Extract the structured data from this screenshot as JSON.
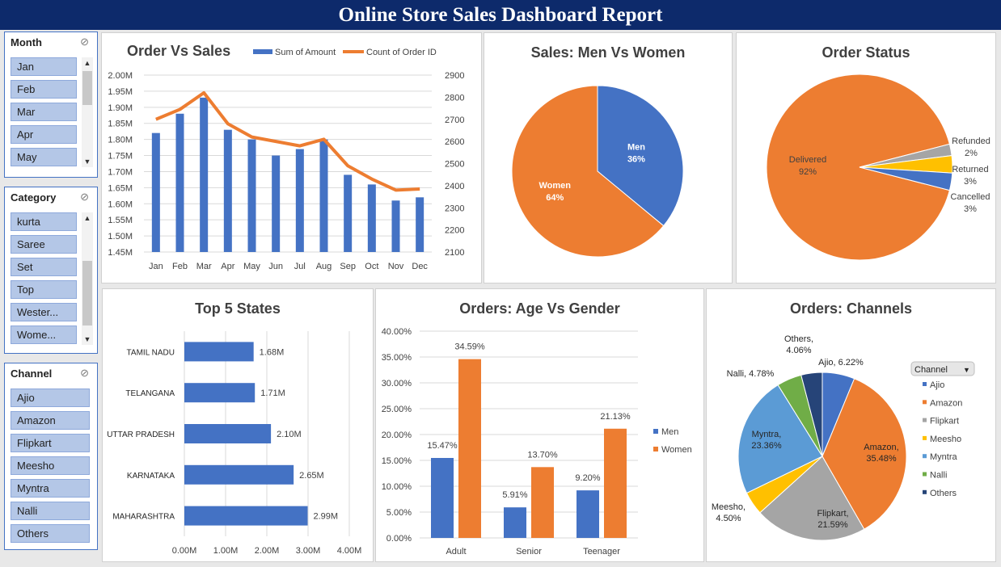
{
  "title": "Online Store Sales Dashboard Report",
  "slicers": {
    "month": {
      "header": "Month",
      "items": [
        "Jan",
        "Feb",
        "Mar",
        "Apr",
        "May"
      ]
    },
    "category": {
      "header": "Category",
      "items": [
        "kurta",
        "Saree",
        "Set",
        "Top",
        "Wester...",
        "Wome..."
      ]
    },
    "channel": {
      "header": "Channel",
      "items": [
        "Ajio",
        "Amazon",
        "Flipkart",
        "Meesho",
        "Myntra",
        "Nalli",
        "Others"
      ]
    }
  },
  "icons": {
    "filter_clear": "filter-clear-icon",
    "scroll_up": "chevron-up-icon",
    "scroll_down": "chevron-down-icon",
    "legend_dropdown": "dropdown-arrow-icon"
  },
  "colors": {
    "blue": "#4472c4",
    "orange": "#ed7d31",
    "gray": "#a5a5a5",
    "yellow": "#ffc000",
    "light_blue": "#5b9bd5",
    "green": "#70ad47",
    "navy": "#264478",
    "header": "#0d2a6b"
  },
  "chart_data": [
    {
      "id": "order_vs_sales",
      "type": "bar",
      "title": "Order Vs Sales",
      "categories": [
        "Jan",
        "Feb",
        "Mar",
        "Apr",
        "May",
        "Jun",
        "Jul",
        "Aug",
        "Sep",
        "Oct",
        "Nov",
        "Dec"
      ],
      "series": [
        {
          "name": "Sum of Amount",
          "type": "bar",
          "axis": "left",
          "values": [
            1.82,
            1.88,
            1.93,
            1.83,
            1.8,
            1.75,
            1.77,
            1.8,
            1.69,
            1.66,
            1.61,
            1.62
          ]
        },
        {
          "name": "Count of Order ID",
          "type": "line",
          "axis": "right",
          "values": [
            2700,
            2745,
            2820,
            2680,
            2620,
            2600,
            2580,
            2610,
            2490,
            2430,
            2380,
            2385
          ]
        }
      ],
      "y_left": {
        "min": 1.45,
        "max": 2.0,
        "ticks": [
          "1.45M",
          "1.50M",
          "1.55M",
          "1.60M",
          "1.65M",
          "1.70M",
          "1.75M",
          "1.80M",
          "1.85M",
          "1.90M",
          "1.95M",
          "2.00M"
        ]
      },
      "y_right": {
        "min": 2100,
        "max": 2900,
        "ticks": [
          "2100",
          "2200",
          "2300",
          "2400",
          "2500",
          "2600",
          "2700",
          "2800",
          "2900"
        ]
      },
      "legend": "top",
      "grid": true
    },
    {
      "id": "men_vs_women",
      "type": "pie",
      "title": "Sales: Men Vs Women",
      "slices": [
        {
          "label": "Men",
          "value": 36,
          "text": "36%",
          "color": "#4472c4"
        },
        {
          "label": "Women",
          "value": 64,
          "text": "64%",
          "color": "#ed7d31"
        }
      ]
    },
    {
      "id": "order_status",
      "type": "pie",
      "title": "Order Status",
      "slices": [
        {
          "label": "Delivered",
          "value": 92,
          "text": "92%",
          "color": "#ed7d31"
        },
        {
          "label": "Refunded",
          "value": 2,
          "text": "2%",
          "color": "#a5a5a5"
        },
        {
          "label": "Returned",
          "value": 3,
          "text": "3%",
          "color": "#ffc000"
        },
        {
          "label": "Cancelled",
          "value": 3,
          "text": "3%",
          "color": "#4472c4"
        }
      ]
    },
    {
      "id": "top5_states",
      "type": "bar",
      "orientation": "horizontal",
      "title": "Top 5 States",
      "categories": [
        "TAMIL NADU",
        "TELANGANA",
        "UTTAR PRADESH",
        "KARNATAKA",
        "MAHARASHTRA"
      ],
      "values": [
        1.68,
        1.71,
        2.1,
        2.65,
        2.99
      ],
      "labels": [
        "1.68M",
        "1.71M",
        "2.10M",
        "2.65M",
        "2.99M"
      ],
      "xlim": [
        0,
        4
      ],
      "x_ticks": [
        "0.00M",
        "1.00M",
        "2.00M",
        "3.00M",
        "4.00M"
      ],
      "grid": true
    },
    {
      "id": "age_vs_gender",
      "type": "bar",
      "title": "Orders: Age Vs Gender",
      "categories": [
        "Adult",
        "Senior",
        "Teenager"
      ],
      "series": [
        {
          "name": "Men",
          "values": [
            15.47,
            5.91,
            9.2
          ],
          "labels": [
            "15.47%",
            "5.91%",
            "9.20%"
          ],
          "color": "#4472c4"
        },
        {
          "name": "Women",
          "values": [
            34.59,
            13.7,
            21.13
          ],
          "labels": [
            "34.59%",
            "13.70%",
            "21.13%"
          ],
          "color": "#ed7d31"
        }
      ],
      "ylim": [
        0,
        40
      ],
      "y_ticks": [
        "0.00%",
        "5.00%",
        "10.00%",
        "15.00%",
        "20.00%",
        "25.00%",
        "30.00%",
        "35.00%",
        "40.00%"
      ],
      "legend": "right",
      "grid": true
    },
    {
      "id": "channels",
      "type": "pie",
      "title": "Orders: Channels",
      "legend_title": "Channel",
      "slices": [
        {
          "label": "Ajio",
          "value": 6.22,
          "text": "Ajio, 6.22%",
          "color": "#4472c4"
        },
        {
          "label": "Amazon",
          "value": 35.48,
          "text": "Amazon, 35.48%",
          "color": "#ed7d31"
        },
        {
          "label": "Flipkart",
          "value": 21.59,
          "text": "Flipkart, 21.59%",
          "color": "#a5a5a5"
        },
        {
          "label": "Meesho",
          "value": 4.5,
          "text": "Meesho, 4.50%",
          "color": "#ffc000"
        },
        {
          "label": "Myntra",
          "value": 23.36,
          "text": "Myntra, 23.36%",
          "color": "#5b9bd5"
        },
        {
          "label": "Nalli",
          "value": 4.78,
          "text": "Nalli, 4.78%",
          "color": "#70ad47"
        },
        {
          "label": "Others",
          "value": 4.06,
          "text": "Others, 4.06%",
          "color": "#264478"
        }
      ],
      "legend": "right"
    }
  ]
}
